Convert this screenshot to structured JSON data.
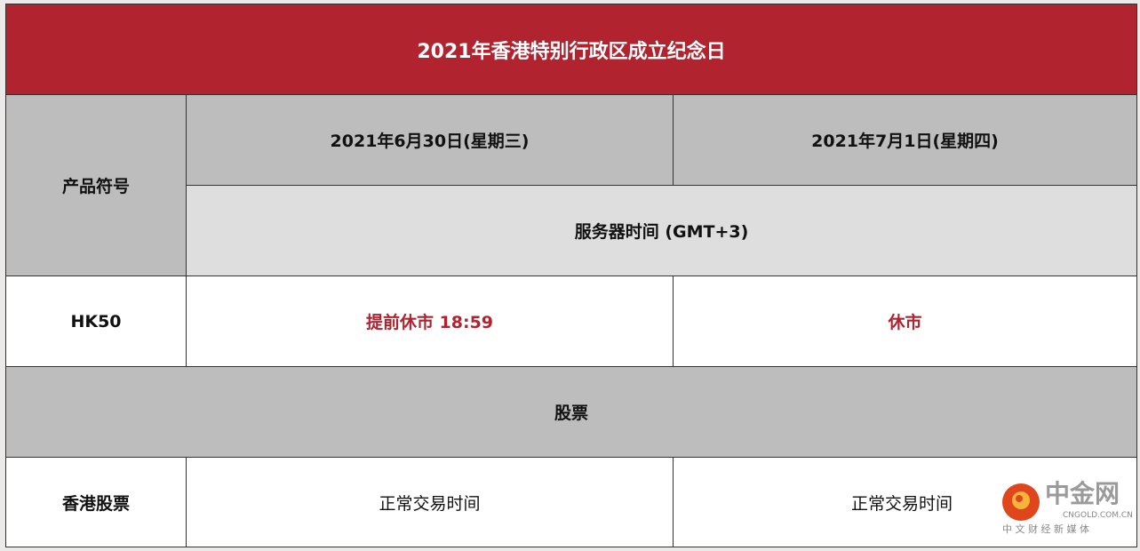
{
  "title": "2021年香港特别行政区成立纪念日",
  "header": {
    "product_symbol": "产品符号",
    "date1": "2021年6月30日(星期三)",
    "date2": "2021年7月1日(星期四)",
    "server_time": "服务器时间 (GMT+3)"
  },
  "rows": [
    {
      "symbol": "HK50",
      "day1": "提前休市 18:59",
      "day2": "休市"
    },
    {
      "section": "股票"
    },
    {
      "symbol": "香港股票",
      "day1": "正常交易时间",
      "day2": "正常交易时间"
    }
  ],
  "watermark": {
    "name": "中金网",
    "domain": "CNGOLD.COM.CN",
    "tagline": "中 文 财 经 新 媒 体"
  },
  "colors": {
    "title_bg": "#b0232f",
    "header_bg": "#bdbdbd",
    "subheader_bg": "#dedede",
    "highlight_text": "#b0232f"
  }
}
